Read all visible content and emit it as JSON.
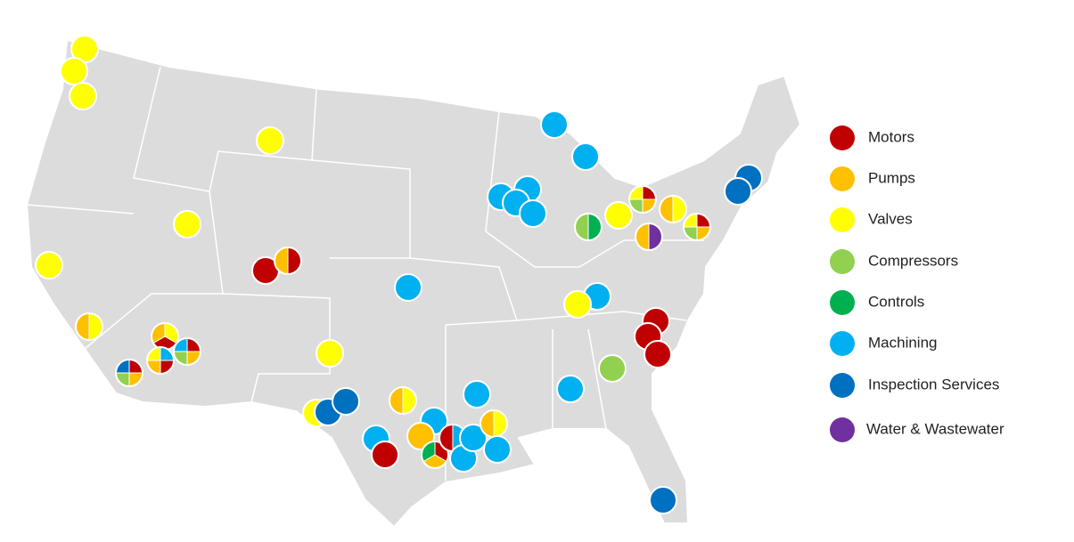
{
  "legend": {
    "items": [
      {
        "label": "Motors",
        "color": "#c00000"
      },
      {
        "label": "Pumps",
        "color": "#ffc000"
      },
      {
        "label": "Valves",
        "color": "#ffff00"
      },
      {
        "label": "Compressors",
        "color": "#92d050"
      },
      {
        "label": "Controls",
        "color": "#00b050"
      },
      {
        "label": "Machining",
        "color": "#00b0f0"
      },
      {
        "label": "Inspection Services",
        "color": "#0070c0"
      },
      {
        "label": "Water & Wastewater",
        "color": "#7030a0"
      }
    ]
  }
}
